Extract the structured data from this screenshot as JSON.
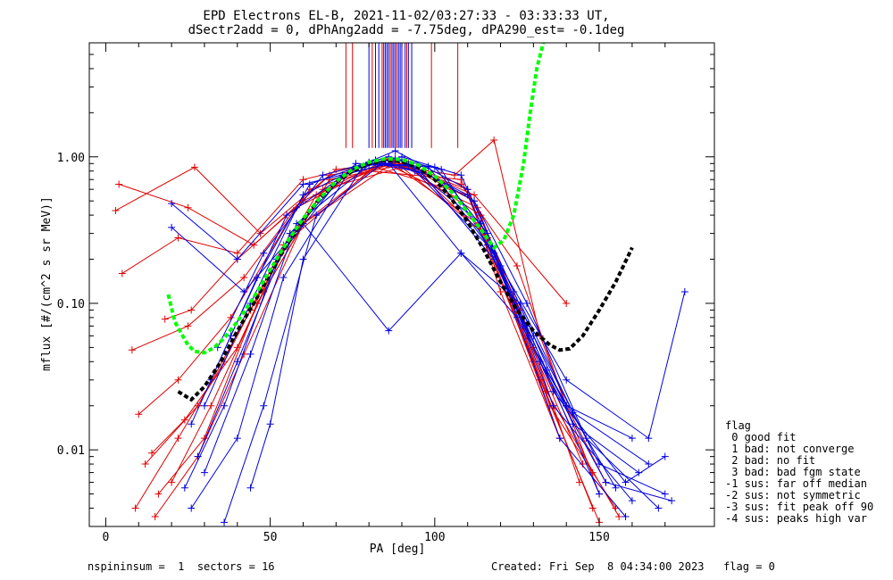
{
  "chart_data": {
    "type": "line",
    "title": "EPD Electrons EL-B, 2021-11-02/03:27:33 - 03:33:33 UT,",
    "subtitle": "dSectr2add = 0, dPhAng2add = -7.75deg, dPA290_est=  -0.1deg",
    "xlabel": "PA [deg]",
    "ylabel": "mflux [#/(cm^2 s sr MeV)]",
    "xlim": [
      -5,
      185
    ],
    "ylim": [
      0.003,
      6.0
    ],
    "yscale": "log",
    "xticks": [
      0,
      50,
      100,
      150
    ],
    "xtick_labels": [
      "0",
      "50",
      "100",
      "150"
    ],
    "yticks": [
      0.01,
      0.1,
      1.0
    ],
    "ytick_labels": [
      "0.01",
      "0.10",
      "1.00"
    ],
    "grid": false,
    "legend_placement": "right-outside-bottom",
    "colors": {
      "red_series": "#e00000",
      "blue_series": "#0000e0",
      "green_fit": "#00ff00",
      "black_fit": "#000000"
    },
    "red_series": [
      {
        "values": [
          [
            4,
            0.65
          ],
          [
            25,
            0.45
          ],
          [
            45,
            0.25
          ],
          [
            70,
            0.82
          ],
          [
            88,
            0.92
          ],
          [
            108,
            0.65
          ],
          [
            125,
            0.18
          ],
          [
            140,
            0.02
          ],
          [
            152,
            0.006
          ]
        ]
      },
      {
        "values": [
          [
            5,
            0.16
          ],
          [
            22,
            0.28
          ],
          [
            40,
            0.22
          ],
          [
            60,
            0.7
          ],
          [
            85,
            0.95
          ],
          [
            110,
            0.6
          ],
          [
            120,
            0.12
          ],
          [
            138,
            0.012
          ]
        ]
      },
      {
        "values": [
          [
            3,
            0.43
          ],
          [
            27,
            0.85
          ],
          [
            47,
            0.3
          ],
          [
            68,
            0.75
          ],
          [
            90,
            0.9
          ],
          [
            112,
            0.5
          ],
          [
            128,
            0.06
          ],
          [
            145,
            0.008
          ]
        ]
      },
      {
        "values": [
          [
            8,
            0.048
          ],
          [
            25,
            0.07
          ],
          [
            42,
            0.15
          ],
          [
            62,
            0.6
          ],
          [
            86,
            0.88
          ],
          [
            113,
            0.45
          ],
          [
            130,
            0.05
          ],
          [
            148,
            0.007
          ]
        ]
      },
      {
        "values": [
          [
            10,
            0.0175
          ],
          [
            22,
            0.03
          ],
          [
            38,
            0.08
          ],
          [
            58,
            0.45
          ],
          [
            84,
            0.9
          ],
          [
            106,
            0.75
          ],
          [
            118,
            1.3
          ],
          [
            132,
            0.06
          ],
          [
            150,
            0.005
          ]
        ]
      },
      {
        "values": [
          [
            12,
            0.008
          ],
          [
            28,
            0.02
          ],
          [
            44,
            0.09
          ],
          [
            64,
            0.55
          ],
          [
            88,
            0.95
          ],
          [
            114,
            0.4
          ],
          [
            135,
            0.02
          ],
          [
            155,
            0.004
          ]
        ]
      },
      {
        "values": [
          [
            16,
            0.005
          ],
          [
            30,
            0.012
          ],
          [
            46,
            0.1
          ],
          [
            66,
            0.6
          ],
          [
            90,
            0.85
          ],
          [
            115,
            0.3
          ],
          [
            138,
            0.012
          ]
        ]
      },
      {
        "values": [
          [
            18,
            0.078
          ],
          [
            26,
            0.09
          ],
          [
            40,
            0.2
          ],
          [
            60,
            0.5
          ],
          [
            86,
            0.97
          ],
          [
            112,
            0.55
          ],
          [
            140,
            0.1
          ]
        ]
      },
      {
        "values": [
          [
            14,
            0.0095
          ],
          [
            24,
            0.016
          ],
          [
            40,
            0.05
          ],
          [
            56,
            0.3
          ],
          [
            82,
            0.85
          ],
          [
            110,
            0.55
          ],
          [
            130,
            0.04
          ],
          [
            148,
            0.004
          ]
        ]
      },
      {
        "values": [
          [
            20,
            0.006
          ],
          [
            32,
            0.02
          ],
          [
            48,
            0.12
          ],
          [
            68,
            0.7
          ],
          [
            92,
            0.9
          ],
          [
            116,
            0.28
          ],
          [
            134,
            0.025
          ],
          [
            156,
            0.0035
          ]
        ]
      },
      {
        "values": [
          [
            9,
            0.004
          ],
          [
            22,
            0.012
          ],
          [
            36,
            0.04
          ],
          [
            54,
            0.25
          ],
          [
            80,
            0.8
          ],
          [
            108,
            0.7
          ],
          [
            126,
            0.09
          ],
          [
            144,
            0.006
          ]
        ]
      },
      {
        "values": [
          [
            15,
            0.0035
          ],
          [
            28,
            0.009
          ],
          [
            42,
            0.045
          ],
          [
            60,
            0.35
          ],
          [
            87,
            0.9
          ],
          [
            113,
            0.35
          ],
          [
            132,
            0.03
          ],
          [
            150,
            0.0032
          ]
        ]
      }
    ],
    "blue_series": [
      {
        "values": [
          [
            20,
            0.48
          ],
          [
            40,
            0.2
          ],
          [
            60,
            0.65
          ],
          [
            86,
            0.9
          ],
          [
            108,
            0.22
          ],
          [
            125,
            0.08
          ],
          [
            140,
            0.02
          ],
          [
            160,
            0.012
          ]
        ]
      },
      {
        "values": [
          [
            20,
            0.33
          ],
          [
            42,
            0.12
          ],
          [
            60,
            0.35
          ],
          [
            86,
            0.065
          ],
          [
            108,
            0.22
          ],
          [
            126,
            0.1
          ],
          [
            142,
            0.018
          ],
          [
            165,
            0.008
          ]
        ]
      },
      {
        "values": [
          [
            26,
            0.015
          ],
          [
            38,
            0.06
          ],
          [
            55,
            0.4
          ],
          [
            76,
            0.85
          ],
          [
            88,
            1.1
          ],
          [
            110,
            0.6
          ],
          [
            130,
            0.06
          ],
          [
            150,
            0.008
          ],
          [
            170,
            0.005
          ]
        ]
      },
      {
        "values": [
          [
            24,
            0.0055
          ],
          [
            36,
            0.02
          ],
          [
            52,
            0.2
          ],
          [
            72,
            0.75
          ],
          [
            90,
            0.95
          ],
          [
            112,
            0.5
          ],
          [
            128,
            0.1
          ],
          [
            146,
            0.012
          ],
          [
            168,
            0.004
          ]
        ]
      },
      {
        "values": [
          [
            28,
            0.009
          ],
          [
            40,
            0.04
          ],
          [
            56,
            0.3
          ],
          [
            76,
            0.9
          ],
          [
            92,
            0.88
          ],
          [
            114,
            0.35
          ],
          [
            132,
            0.04
          ],
          [
            152,
            0.006
          ],
          [
            172,
            0.0045
          ]
        ]
      },
      {
        "values": [
          [
            30,
            0.02
          ],
          [
            44,
            0.1
          ],
          [
            60,
            0.55
          ],
          [
            80,
            0.92
          ],
          [
            94,
            0.8
          ],
          [
            116,
            0.25
          ],
          [
            134,
            0.035
          ],
          [
            155,
            0.0055
          ]
        ]
      },
      {
        "values": [
          [
            32,
            0.03
          ],
          [
            46,
            0.15
          ],
          [
            62,
            0.65
          ],
          [
            82,
            0.95
          ],
          [
            96,
            0.78
          ],
          [
            118,
            0.2
          ],
          [
            136,
            0.025
          ],
          [
            158,
            0.006
          ],
          [
            170,
            0.009
          ]
        ]
      },
      {
        "values": [
          [
            26,
            0.004
          ],
          [
            40,
            0.012
          ],
          [
            54,
            0.15
          ],
          [
            74,
            0.8
          ],
          [
            88,
            0.98
          ],
          [
            110,
            0.55
          ],
          [
            128,
            0.07
          ],
          [
            150,
            0.005
          ]
        ]
      },
      {
        "values": [
          [
            44,
            0.0055
          ],
          [
            50,
            0.015
          ],
          [
            60,
            0.2
          ],
          [
            78,
            0.85
          ],
          [
            90,
            1.0
          ],
          [
            108,
            0.75
          ],
          [
            124,
            0.12
          ],
          [
            142,
            0.015
          ],
          [
            162,
            0.007
          ]
        ]
      },
      {
        "values": [
          [
            36,
            0.0032
          ],
          [
            48,
            0.02
          ],
          [
            64,
            0.4
          ],
          [
            84,
            0.9
          ],
          [
            100,
            0.85
          ],
          [
            116,
            0.3
          ],
          [
            136,
            0.02
          ],
          [
            160,
            0.0045
          ]
        ]
      },
      {
        "values": [
          [
            34,
            0.05
          ],
          [
            48,
            0.22
          ],
          [
            66,
            0.75
          ],
          [
            86,
            1.0
          ],
          [
            102,
            0.82
          ],
          [
            120,
            0.18
          ],
          [
            140,
            0.03
          ],
          [
            165,
            0.012
          ],
          [
            176,
            0.12
          ]
        ]
      },
      {
        "values": [
          [
            30,
            0.007
          ],
          [
            44,
            0.045
          ],
          [
            58,
            0.35
          ],
          [
            80,
            0.88
          ],
          [
            98,
            0.86
          ],
          [
            118,
            0.22
          ],
          [
            138,
            0.012
          ],
          [
            158,
            0.0035
          ]
        ]
      }
    ],
    "vertical_markers": [
      {
        "x": 73,
        "color": "#e00000"
      },
      {
        "x": 75,
        "color": "#e00000"
      },
      {
        "x": 80,
        "color": "#0000e0"
      },
      {
        "x": 81,
        "color": "#e00000"
      },
      {
        "x": 82,
        "color": "#0000e0"
      },
      {
        "x": 83,
        "color": "#0000e0"
      },
      {
        "x": 84,
        "color": "#e00000"
      },
      {
        "x": 84.5,
        "color": "#0000e0"
      },
      {
        "x": 85,
        "color": "#0000e0"
      },
      {
        "x": 85.5,
        "color": "#0000e0"
      },
      {
        "x": 86,
        "color": "#0000e0"
      },
      {
        "x": 86.5,
        "color": "#e00000"
      },
      {
        "x": 87,
        "color": "#0000e0"
      },
      {
        "x": 87.5,
        "color": "#0000e0"
      },
      {
        "x": 88,
        "color": "#0000e0"
      },
      {
        "x": 88.5,
        "color": "#e00000"
      },
      {
        "x": 89,
        "color": "#0000e0"
      },
      {
        "x": 89.5,
        "color": "#0000e0"
      },
      {
        "x": 90,
        "color": "#0000e0"
      },
      {
        "x": 91,
        "color": "#0000e0"
      },
      {
        "x": 91.5,
        "color": "#e00000"
      },
      {
        "x": 92,
        "color": "#0000e0"
      },
      {
        "x": 93,
        "color": "#0000e0"
      },
      {
        "x": 99,
        "color": "#e00000"
      },
      {
        "x": 107,
        "color": "#e00000"
      }
    ],
    "green_fit": {
      "x": [
        19,
        21,
        23,
        25,
        27,
        30,
        33,
        36,
        40,
        45,
        50,
        55,
        60,
        65,
        70,
        75,
        80,
        85,
        90,
        95,
        100,
        105,
        110,
        114,
        118,
        121,
        124,
        127,
        129,
        131,
        133
      ],
      "y": [
        0.115,
        0.075,
        0.062,
        0.052,
        0.047,
        0.046,
        0.05,
        0.058,
        0.075,
        0.11,
        0.17,
        0.26,
        0.38,
        0.52,
        0.68,
        0.82,
        0.92,
        0.97,
        0.96,
        0.88,
        0.74,
        0.58,
        0.42,
        0.32,
        0.24,
        0.27,
        0.4,
        0.9,
        2.0,
        4.0,
        6.0
      ]
    },
    "black_fit": {
      "x": [
        22,
        26,
        30,
        35,
        40,
        45,
        50,
        55,
        60,
        65,
        70,
        75,
        80,
        85,
        90,
        95,
        100,
        105,
        110,
        115,
        120,
        125,
        130,
        135,
        138,
        141,
        145,
        150,
        155,
        160
      ],
      "y": [
        0.025,
        0.022,
        0.027,
        0.04,
        0.065,
        0.1,
        0.16,
        0.25,
        0.37,
        0.52,
        0.67,
        0.8,
        0.9,
        0.95,
        0.93,
        0.85,
        0.7,
        0.52,
        0.36,
        0.23,
        0.14,
        0.09,
        0.065,
        0.052,
        0.048,
        0.049,
        0.06,
        0.09,
        0.14,
        0.24
      ]
    }
  },
  "legend": {
    "title": "flag",
    "entries": [
      " 0 good fit",
      " 1 bad: not converge",
      " 2 bad: no fit",
      " 3 bad: bad fgm state",
      "-1 sus: far off median",
      "-2 sus: not symmetric",
      "-3 sus: fit peak off 90",
      "-4 sus: peaks high var"
    ]
  },
  "footer": {
    "left": "nspininsum =  1  sectors = 16",
    "right": "Created: Fri Sep  8 04:34:00 2023   flag = 0"
  }
}
